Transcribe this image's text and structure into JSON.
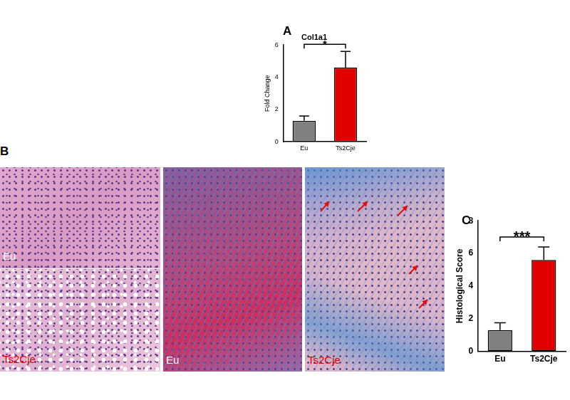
{
  "chart_data": [
    {
      "type": "bar",
      "panel_label": "A",
      "title": "Col1a1",
      "y_label": "Fold Change",
      "categories": [
        "Eu",
        "Ts2Cje"
      ],
      "values": [
        1.3,
        4.6
      ],
      "errors": [
        0.3,
        1.0
      ],
      "colors": [
        "#808080",
        "#e00000"
      ],
      "ylim": [
        0,
        6
      ],
      "yticks": [
        0,
        2,
        4,
        6
      ],
      "grid": false,
      "annotations": [
        {
          "text": "*",
          "from": 0,
          "to": 1
        }
      ]
    },
    {
      "type": "bar",
      "panel_label": "C",
      "y_label": "Histological Score",
      "categories": [
        "Eu",
        "Ts2Cje"
      ],
      "values": [
        1.3,
        5.6
      ],
      "errors": [
        0.45,
        0.8
      ],
      "colors": [
        "#808080",
        "#e00000"
      ],
      "ylim": [
        0,
        8
      ],
      "yticks": [
        0,
        2,
        4,
        6,
        8
      ],
      "grid": false,
      "annotations": [
        {
          "text": "***",
          "from": 0,
          "to": 1
        }
      ]
    }
  ],
  "figure": {
    "panel_label": "B",
    "images": [
      {
        "label": "Eu",
        "color": "#ffffff"
      },
      {
        "label": "Ts2Cje",
        "color": "#e00000"
      },
      {
        "label": "Eu",
        "color": "#ffffff"
      },
      {
        "label": "Ts2Cje",
        "color": "#e00000"
      }
    ]
  }
}
